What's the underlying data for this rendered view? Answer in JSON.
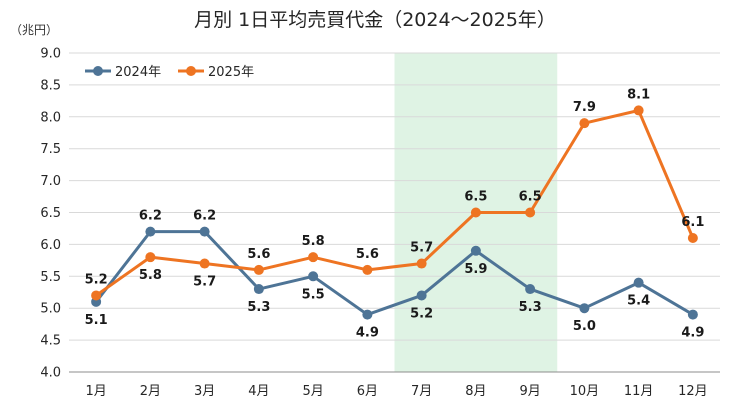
{
  "chart_data": {
    "type": "line",
    "title": "月別 1日平均売買代金（2024～2025年）",
    "ylabel_unit": "（兆円）",
    "categories": [
      "1月",
      "2月",
      "3月",
      "4月",
      "5月",
      "6月",
      "7月",
      "8月",
      "9月",
      "10月",
      "11月",
      "12月"
    ],
    "y_ticks": [
      "4.0",
      "4.5",
      "5.0",
      "5.5",
      "6.0",
      "6.5",
      "7.0",
      "7.5",
      "8.0",
      "8.5",
      "9.0"
    ],
    "ylim": [
      4.0,
      9.0
    ],
    "grid": "horizontal",
    "legend_position": "top-left",
    "highlight": {
      "from": "7月",
      "to": "9月",
      "color": "#dff3e4"
    },
    "series": [
      {
        "name": "2024年",
        "color": "#4e7496",
        "values": [
          5.1,
          6.2,
          6.2,
          5.3,
          5.5,
          4.9,
          5.2,
          5.9,
          5.3,
          5.0,
          5.4,
          4.9
        ],
        "labels": [
          "5.1",
          "6.2",
          "6.2",
          "5.3",
          "5.5",
          "4.9",
          "5.2",
          "5.9",
          "5.3",
          "5.0",
          "5.4",
          "4.9"
        ]
      },
      {
        "name": "2025年",
        "color": "#ee7422",
        "values": [
          5.2,
          5.8,
          5.7,
          5.6,
          5.8,
          5.6,
          5.7,
          6.5,
          6.5,
          7.9,
          8.1,
          6.1
        ],
        "labels": [
          "5.2",
          "5.8",
          "5.7",
          "5.6",
          "5.8",
          "5.6",
          "5.7",
          "6.5",
          "6.5",
          "7.9",
          "8.1",
          "6.1"
        ]
      }
    ]
  }
}
